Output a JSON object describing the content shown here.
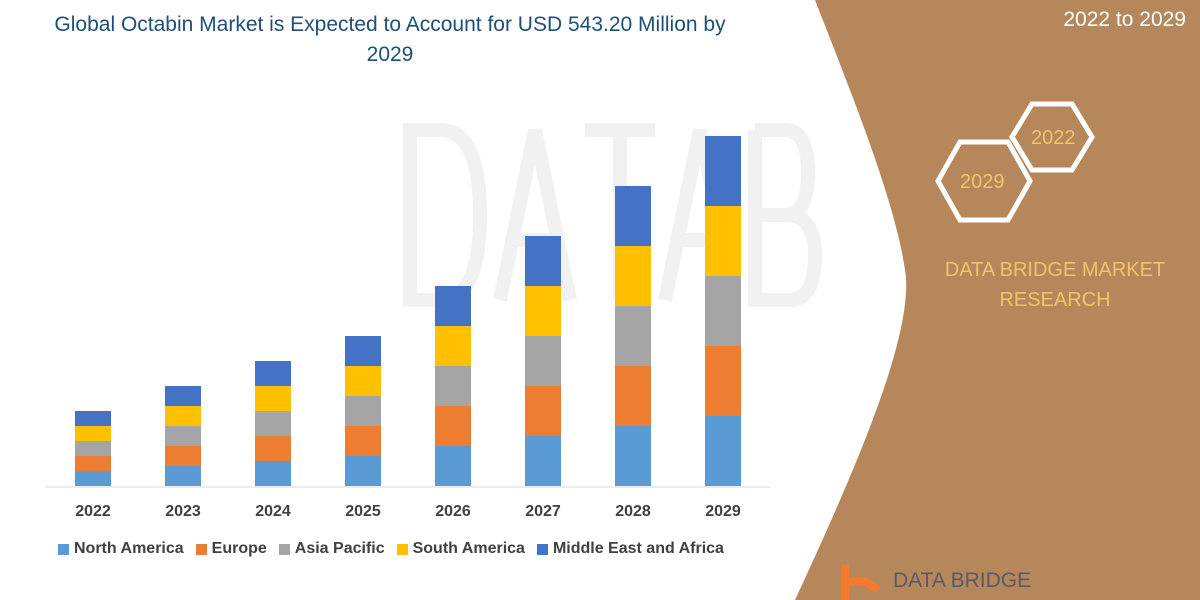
{
  "title": "Global Octabin Market is Expected to Account for USD 543.20 Million by 2029",
  "period": "2022 to 2029",
  "hexagons": [
    "2022",
    "2029"
  ],
  "brand": "DATA BRIDGE MARKET RESEARCH",
  "logo_text": "DATA BRIDGE",
  "watermark": "DATA BRIDGE",
  "colors": {
    "panel": "#b5875a",
    "title": "#1f4e79",
    "accent_text": "#f2c36b"
  },
  "chart_data": {
    "type": "bar",
    "stacked": true,
    "title": "Global Octabin Market is Expected to Account for USD 543.20 Million by 2029",
    "categories": [
      "2022",
      "2023",
      "2024",
      "2025",
      "2026",
      "2027",
      "2028",
      "2029"
    ],
    "y_axis_shown": false,
    "grid": false,
    "legend_placement": "bottom",
    "series": [
      {
        "name": "North America",
        "color": "#5b9bd5",
        "values": [
          15,
          20,
          25,
          30,
          40,
          50,
          60,
          70
        ]
      },
      {
        "name": "Europe",
        "color": "#ed7d31",
        "values": [
          15,
          20,
          25,
          30,
          40,
          50,
          60,
          70
        ]
      },
      {
        "name": "Asia Pacific",
        "color": "#a5a5a5",
        "values": [
          15,
          20,
          25,
          30,
          40,
          50,
          60,
          70
        ]
      },
      {
        "name": "South America",
        "color": "#ffc000",
        "values": [
          15,
          20,
          25,
          30,
          40,
          50,
          60,
          70
        ]
      },
      {
        "name": "Middle East and Africa",
        "color": "#4472c4",
        "values": [
          15,
          20,
          25,
          30,
          40,
          50,
          60,
          70
        ]
      }
    ]
  }
}
